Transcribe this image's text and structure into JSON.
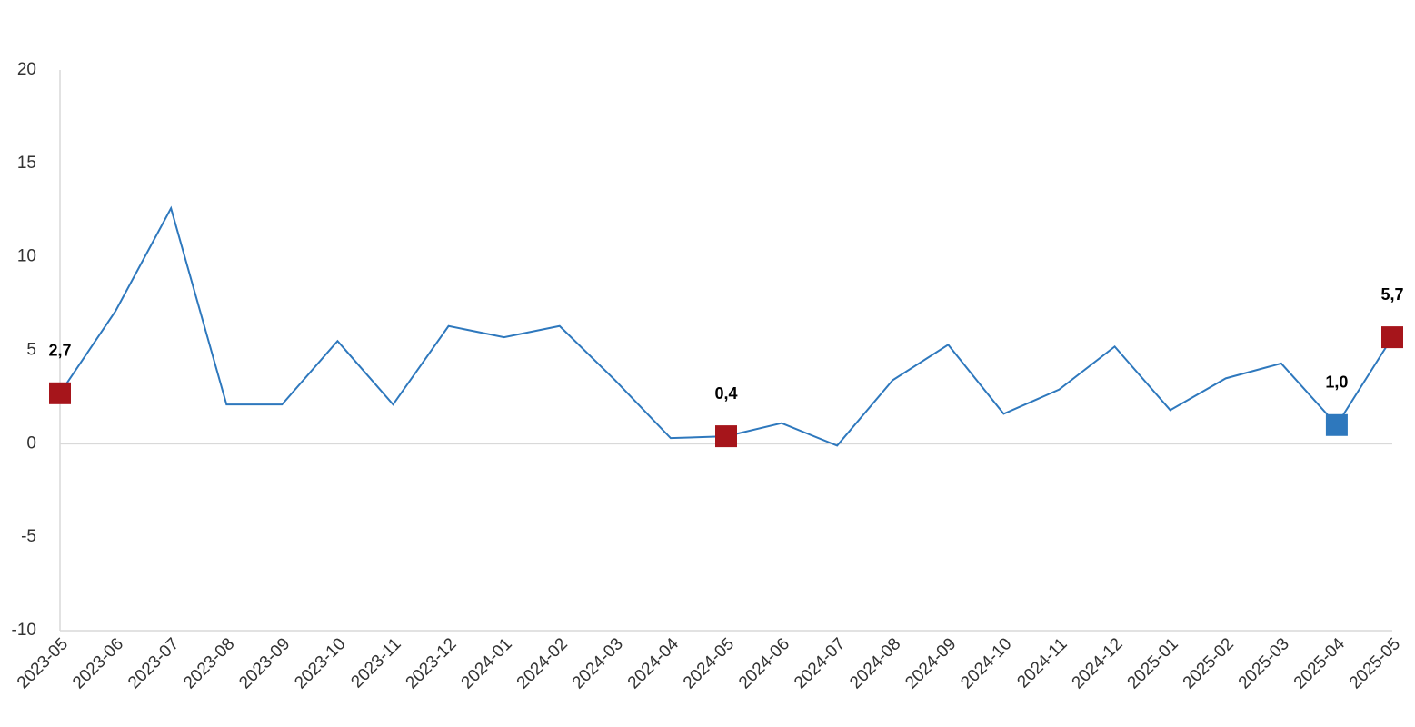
{
  "chart_data": {
    "type": "line",
    "categories": [
      "2023-05",
      "2023-06",
      "2023-07",
      "2023-08",
      "2023-09",
      "2023-10",
      "2023-11",
      "2023-12",
      "2024-01",
      "2024-02",
      "2024-03",
      "2024-04",
      "2024-05",
      "2024-06",
      "2024-07",
      "2024-08",
      "2024-09",
      "2024-10",
      "2024-11",
      "2024-12",
      "2025-01",
      "2025-02",
      "2025-03",
      "2025-04",
      "2025-05"
    ],
    "values": [
      2.7,
      7.1,
      12.6,
      2.1,
      2.1,
      5.5,
      2.1,
      6.3,
      5.7,
      6.3,
      3.4,
      0.3,
      0.4,
      1.1,
      -0.1,
      3.4,
      5.3,
      1.6,
      2.9,
      5.2,
      1.8,
      3.5,
      4.3,
      1.0,
      5.7
    ],
    "value_labels": [
      "2,7",
      null,
      null,
      null,
      null,
      null,
      null,
      null,
      null,
      null,
      null,
      null,
      "0,4",
      null,
      null,
      null,
      null,
      null,
      null,
      null,
      null,
      null,
      null,
      "1,0",
      "5,7"
    ],
    "marker_colors": [
      "#a6151b",
      null,
      null,
      null,
      null,
      null,
      null,
      null,
      null,
      null,
      null,
      null,
      "#a6151b",
      null,
      null,
      null,
      null,
      null,
      null,
      null,
      null,
      null,
      null,
      "#2e78bd",
      "#a6151b"
    ],
    "color": "#2e78bd",
    "ylim": [
      -10,
      20
    ],
    "yticks": [
      -10,
      -5,
      0,
      5,
      10,
      15,
      20
    ],
    "grid": false
  }
}
